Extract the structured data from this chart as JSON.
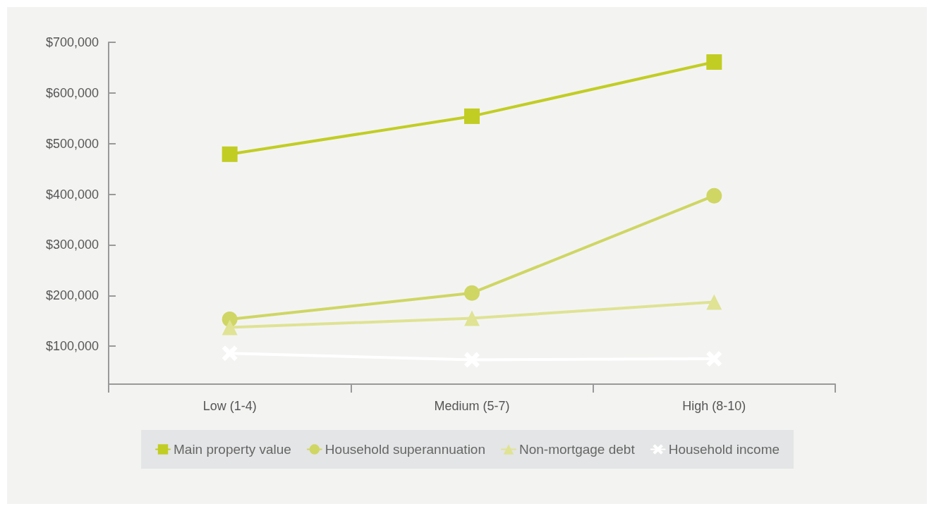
{
  "chart_data": {
    "type": "line",
    "categories": [
      "Low (1-4)",
      "Medium (5-7)",
      "High (8-10)"
    ],
    "series": [
      {
        "name": "Main property value",
        "color": "#c2cd23",
        "marker": "square",
        "values": [
          479000,
          554000,
          661000
        ]
      },
      {
        "name": "Household superannuation",
        "color": "#cfd663",
        "marker": "circle",
        "values": [
          153000,
          205000,
          397000
        ]
      },
      {
        "name": "Non-mortgage debt",
        "color": "#dfe393",
        "marker": "triangle",
        "values": [
          137000,
          155000,
          187000
        ]
      },
      {
        "name": "Household income",
        "color": "#ffffff",
        "marker": "cross",
        "values": [
          86000,
          73000,
          75000
        ]
      }
    ],
    "ylim": [
      25000,
      700000
    ],
    "yticks": [
      {
        "value": 100000,
        "label": "$100,000"
      },
      {
        "value": 200000,
        "label": "$200,000"
      },
      {
        "value": 300000,
        "label": "$300,000"
      },
      {
        "value": 400000,
        "label": "$400,000"
      },
      {
        "value": 500000,
        "label": "$500,000"
      },
      {
        "value": 600000,
        "label": "$600,000"
      },
      {
        "value": 700000,
        "label": "$700,000"
      }
    ],
    "grid": false,
    "legend": "bottom",
    "line_style": "solid"
  }
}
